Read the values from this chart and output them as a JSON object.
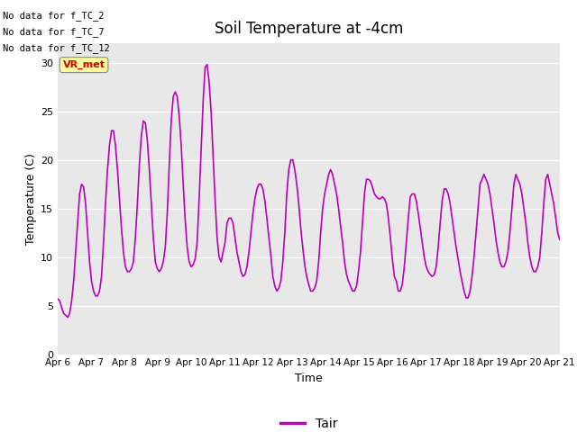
{
  "title": "Soil Temperature at -4cm",
  "xlabel": "Time",
  "ylabel": "Temperature (C)",
  "ylim": [
    0,
    32
  ],
  "yticks": [
    0,
    5,
    10,
    15,
    20,
    25,
    30
  ],
  "line_color": "#bb00bb",
  "line_width": 1.2,
  "legend_label": "Tair",
  "legend_line_color": "#bb00bb",
  "bg_color": "#e8e8e8",
  "annotations": [
    "No data for f_TC_2",
    "No data for f_TC_7",
    "No data for f_TC_12"
  ],
  "vr_met_box_color": "#ffff99",
  "vr_met_text_color": "#cc0000",
  "x_tick_labels": [
    "Apr 6",
    "Apr 7",
    "Apr 8",
    "Apr 9",
    "Apr 10",
    "Apr 11",
    "Apr 12",
    "Apr 13",
    "Apr 14",
    "Apr 15",
    "Apr 16",
    "Apr 17",
    "Apr 18",
    "Apr 19",
    "Apr 20",
    "Apr 21"
  ],
  "temp_data": [
    5.7,
    5.5,
    4.8,
    4.2,
    4.0,
    3.8,
    4.2,
    5.5,
    7.5,
    10.5,
    13.5,
    16.5,
    17.5,
    17.2,
    15.5,
    12.5,
    9.5,
    7.5,
    6.5,
    6.0,
    6.0,
    6.5,
    8.0,
    11.5,
    15.5,
    19.0,
    21.5,
    23.0,
    23.0,
    21.5,
    19.0,
    16.0,
    13.0,
    10.5,
    9.0,
    8.5,
    8.5,
    8.8,
    9.5,
    12.0,
    15.5,
    19.5,
    22.5,
    24.0,
    23.8,
    22.0,
    19.0,
    15.5,
    12.0,
    9.5,
    8.8,
    8.5,
    8.8,
    9.5,
    11.0,
    14.5,
    19.5,
    24.0,
    26.5,
    27.0,
    26.5,
    24.5,
    21.5,
    17.5,
    13.8,
    11.0,
    9.5,
    9.0,
    9.2,
    9.8,
    11.5,
    16.0,
    21.0,
    26.0,
    29.5,
    29.8,
    28.0,
    25.0,
    20.5,
    16.0,
    12.0,
    10.0,
    9.5,
    10.5,
    11.5,
    13.5,
    14.0,
    14.0,
    13.5,
    12.0,
    10.5,
    9.5,
    8.5,
    8.0,
    8.2,
    9.0,
    10.5,
    12.5,
    14.5,
    16.0,
    17.0,
    17.5,
    17.5,
    17.0,
    15.8,
    14.0,
    12.0,
    10.2,
    8.0,
    7.0,
    6.5,
    6.8,
    7.5,
    9.5,
    12.5,
    16.5,
    19.0,
    20.0,
    20.0,
    19.0,
    17.5,
    15.5,
    13.0,
    11.0,
    9.2,
    8.0,
    7.2,
    6.5,
    6.5,
    6.8,
    7.5,
    9.5,
    12.5,
    15.0,
    16.5,
    17.5,
    18.5,
    19.0,
    18.5,
    17.5,
    16.5,
    15.0,
    13.2,
    11.5,
    9.5,
    8.2,
    7.5,
    7.0,
    6.5,
    6.5,
    7.0,
    8.5,
    10.5,
    13.5,
    16.5,
    18.0,
    18.0,
    17.8,
    17.2,
    16.5,
    16.2,
    16.0,
    16.0,
    16.2,
    16.0,
    15.5,
    14.0,
    12.0,
    9.8,
    8.0,
    7.5,
    6.5,
    6.5,
    7.2,
    9.0,
    11.5,
    14.0,
    16.2,
    16.5,
    16.5,
    15.8,
    14.5,
    13.0,
    11.5,
    10.0,
    9.0,
    8.5,
    8.2,
    8.0,
    8.2,
    9.0,
    11.0,
    13.5,
    15.8,
    17.0,
    17.0,
    16.5,
    15.5,
    14.0,
    12.5,
    11.0,
    9.8,
    8.5,
    7.5,
    6.5,
    5.8,
    5.8,
    6.5,
    8.0,
    10.0,
    12.5,
    15.0,
    17.5,
    18.0,
    18.5,
    18.0,
    17.5,
    16.5,
    15.0,
    13.5,
    11.8,
    10.5,
    9.5,
    9.0,
    9.0,
    9.5,
    10.5,
    12.5,
    15.0,
    17.5,
    18.5,
    18.0,
    17.5,
    16.5,
    15.0,
    13.5,
    11.5,
    10.0,
    9.0,
    8.5,
    8.5,
    9.0,
    10.0,
    12.5,
    15.5,
    18.0,
    18.5,
    17.5,
    16.5,
    15.5,
    14.0,
    12.5,
    11.8
  ]
}
